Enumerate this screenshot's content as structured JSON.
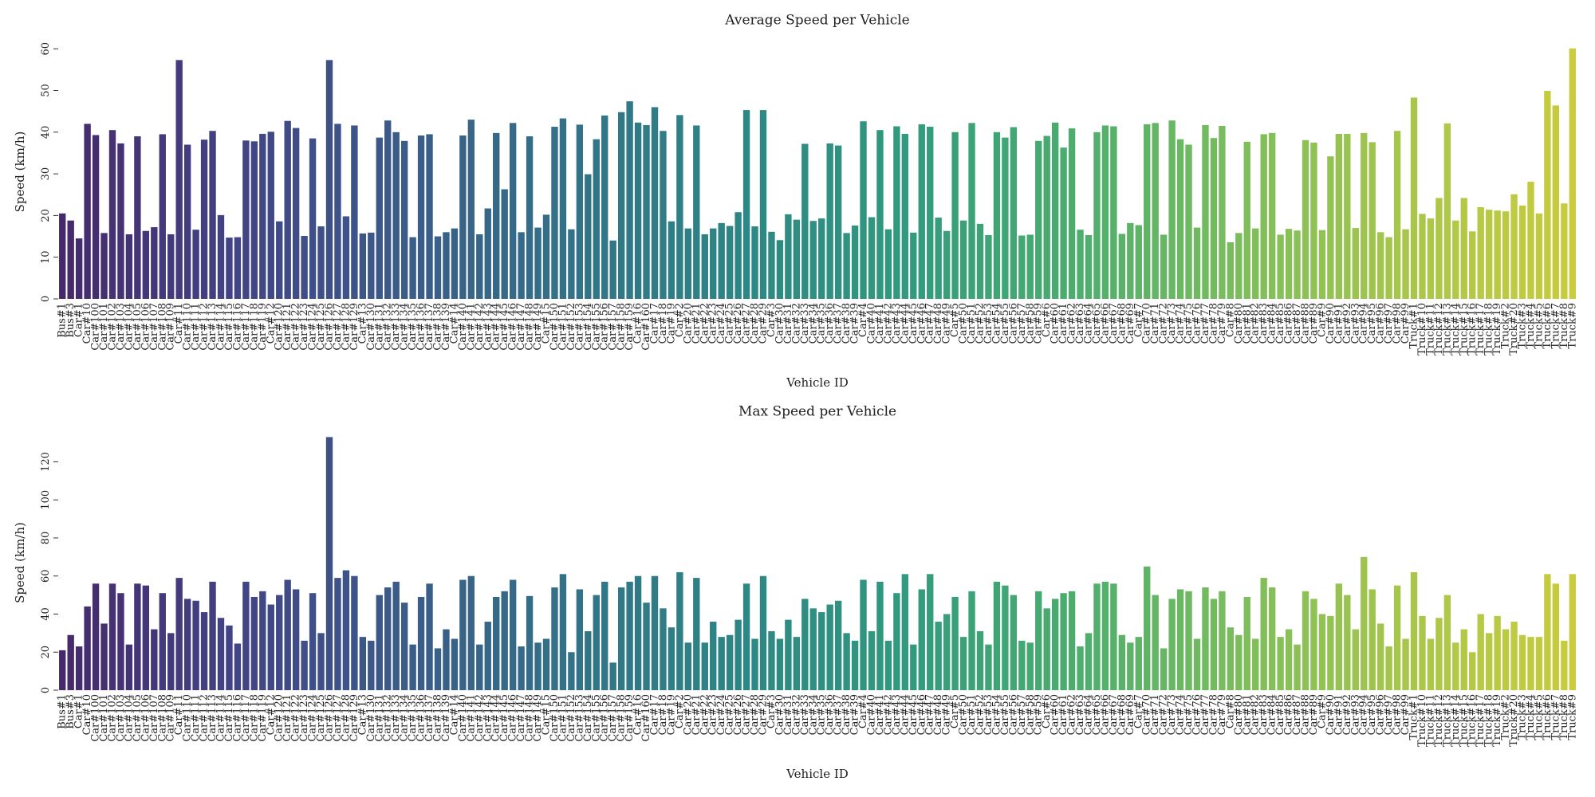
{
  "chart_data": [
    {
      "type": "bar",
      "title": "Average Speed per Vehicle",
      "xlabel": "Vehicle ID",
      "ylabel": "Speed (km/h)",
      "palette": [
        "#46296b",
        "#424385",
        "#3b5b89",
        "#337187",
        "#2d8585",
        "#319a7e",
        "#4bad6f",
        "#7bbd5c",
        "#a8c64b",
        "#c9cc3d"
      ],
      "ylim": [
        0,
        61
      ],
      "yticks": [
        0,
        10,
        20,
        30,
        40,
        50,
        60
      ],
      "categories": [
        "Bus#1",
        "Bus#3",
        "Car#1",
        "Car#10",
        "Car#100",
        "Car#101",
        "Car#102",
        "Car#103",
        "Car#104",
        "Car#105",
        "Car#106",
        "Car#107",
        "Car#108",
        "Car#109",
        "Car#11",
        "Car#110",
        "Car#111",
        "Car#112",
        "Car#113",
        "Car#114",
        "Car#115",
        "Car#116",
        "Car#117",
        "Car#118",
        "Car#119",
        "Car#12",
        "Car#120",
        "Car#121",
        "Car#122",
        "Car#123",
        "Car#124",
        "Car#125",
        "Car#126",
        "Car#127",
        "Car#128",
        "Car#129",
        "Car#13",
        "Car#130",
        "Car#131",
        "Car#132",
        "Car#133",
        "Car#134",
        "Car#135",
        "Car#136",
        "Car#137",
        "Car#138",
        "Car#139",
        "Car#14",
        "Car#140",
        "Car#141",
        "Car#142",
        "Car#143",
        "Car#144",
        "Car#145",
        "Car#146",
        "Car#147",
        "Car#148",
        "Car#149",
        "Car#15",
        "Car#150",
        "Car#151",
        "Car#152",
        "Car#153",
        "Car#154",
        "Car#155",
        "Car#156",
        "Car#157",
        "Car#158",
        "Car#159",
        "Car#16",
        "Car#160",
        "Car#17",
        "Car#18",
        "Car#19",
        "Car#2",
        "Car#20",
        "Car#21",
        "Car#22",
        "Car#23",
        "Car#24",
        "Car#25",
        "Car#26",
        "Car#27",
        "Car#28",
        "Car#29",
        "Car#3",
        "Car#30",
        "Car#31",
        "Car#32",
        "Car#33",
        "Car#34",
        "Car#35",
        "Car#36",
        "Car#37",
        "Car#38",
        "Car#39",
        "Car#4",
        "Car#40",
        "Car#41",
        "Car#42",
        "Car#43",
        "Car#44",
        "Car#45",
        "Car#46",
        "Car#47",
        "Car#48",
        "Car#49",
        "Car#5",
        "Car#50",
        "Car#51",
        "Car#52",
        "Car#53",
        "Car#54",
        "Car#55",
        "Car#56",
        "Car#57",
        "Car#58",
        "Car#59",
        "Car#6",
        "Car#60",
        "Car#61",
        "Car#62",
        "Car#63",
        "Car#64",
        "Car#65",
        "Car#66",
        "Car#67",
        "Car#68",
        "Car#69",
        "Car#7",
        "Car#70",
        "Car#71",
        "Car#72",
        "Car#73",
        "Car#74",
        "Car#75",
        "Car#76",
        "Car#77",
        "Car#78",
        "Car#79",
        "Car#8",
        "Car#80",
        "Car#81",
        "Car#82",
        "Car#83",
        "Car#84",
        "Car#85",
        "Car#86",
        "Car#87",
        "Car#88",
        "Car#89",
        "Car#9",
        "Car#90",
        "Car#91",
        "Car#92",
        "Car#93",
        "Car#94",
        "Car#95",
        "Car#96",
        "Car#97",
        "Car#98",
        "Car#99",
        "Truck#1",
        "Truck#10",
        "Truck#11",
        "Truck#12",
        "Truck#13",
        "Truck#14",
        "Truck#15",
        "Truck#16",
        "Truck#17",
        "Truck#18",
        "Truck#19",
        "Truck#2",
        "Truck#20",
        "Truck#3",
        "Truck#4",
        "Truck#5",
        "Truck#6",
        "Truck#7",
        "Truck#8",
        "Truck#9"
      ],
      "values": [
        20.5,
        18.8,
        14.5,
        42,
        39.3,
        15.8,
        40.5,
        37.3,
        15.5,
        39,
        16.3,
        17.2,
        39.5,
        15.5,
        57.3,
        37,
        16.6,
        38.2,
        40.3,
        20.1,
        14.7,
        14.8,
        38,
        37.8,
        39.6,
        40.1,
        18.6,
        42.7,
        41,
        15.1,
        38.5,
        17.4,
        57.3,
        42,
        19.8,
        41.6,
        15.7,
        15.9,
        38.7,
        42.8,
        40,
        37.9,
        14.8,
        39.2,
        39.5,
        15,
        16,
        16.9,
        39.2,
        43,
        15.5,
        21.7,
        39.8,
        26.3,
        42.2,
        16,
        39,
        17.1,
        20.2,
        41.3,
        43.3,
        16.7,
        41.8,
        29.9,
        38.3,
        44,
        14,
        44.8,
        47.4,
        42.3,
        41.7,
        46,
        40.3,
        18.6,
        44.1,
        16.9,
        41.6,
        15.5,
        16.9,
        18.2,
        17.5,
        20.8,
        45.3,
        17.4,
        45.3,
        16.1,
        14.1,
        20.3,
        19,
        37.2,
        18.7,
        19.3,
        37.3,
        36.8,
        15.8,
        17.6,
        42.6,
        19.6,
        40.5,
        16.7,
        41.4,
        39.6,
        15.9,
        41.9,
        41.3,
        19.5,
        16.3,
        40,
        18.8,
        42.2,
        18,
        15.3,
        40,
        38.7,
        41.2,
        15.2,
        15.4,
        37.9,
        39.1,
        42.3,
        36.3,
        40.9,
        16.6,
        15.3,
        40,
        41.6,
        41.4,
        15.6,
        18.2,
        17.7,
        41.9,
        42.2,
        15.4,
        42.8,
        38.3,
        37,
        17.1,
        41.7,
        38.6,
        41.5,
        13.6,
        15.8,
        37.7,
        16.9,
        39.5,
        39.8,
        15.4,
        16.8,
        16.4,
        38.1,
        37.5,
        16.5,
        34.2,
        39.6,
        39.6,
        17,
        39.8,
        37.6,
        16,
        14.8,
        40.3,
        16.7,
        48.3,
        20.4,
        19.3,
        24.2,
        42.1,
        18.8,
        24.2,
        16.2,
        22,
        21.4,
        21.2,
        21,
        25.1,
        22.4,
        28.1,
        20.5,
        49.9,
        46.4,
        22.9,
        60.1
      ]
    },
    {
      "type": "bar",
      "title": "Max Speed per Vehicle",
      "xlabel": "Vehicle ID",
      "ylabel": "Speed (km/h)",
      "palette": [
        "#46296b",
        "#424385",
        "#3b5b89",
        "#337187",
        "#2d8585",
        "#319a7e",
        "#4bad6f",
        "#7bbd5c",
        "#a8c64b",
        "#c9cc3d"
      ],
      "ylim": [
        0,
        134
      ],
      "yticks": [
        0,
        20,
        40,
        60,
        80,
        100,
        120
      ],
      "categories": [
        "Bus#1",
        "Bus#3",
        "Car#1",
        "Car#10",
        "Car#100",
        "Car#101",
        "Car#102",
        "Car#103",
        "Car#104",
        "Car#105",
        "Car#106",
        "Car#107",
        "Car#108",
        "Car#109",
        "Car#11",
        "Car#110",
        "Car#111",
        "Car#112",
        "Car#113",
        "Car#114",
        "Car#115",
        "Car#116",
        "Car#117",
        "Car#118",
        "Car#119",
        "Car#12",
        "Car#120",
        "Car#121",
        "Car#122",
        "Car#123",
        "Car#124",
        "Car#125",
        "Car#126",
        "Car#127",
        "Car#128",
        "Car#129",
        "Car#13",
        "Car#130",
        "Car#131",
        "Car#132",
        "Car#133",
        "Car#134",
        "Car#135",
        "Car#136",
        "Car#137",
        "Car#138",
        "Car#139",
        "Car#14",
        "Car#140",
        "Car#141",
        "Car#142",
        "Car#143",
        "Car#144",
        "Car#145",
        "Car#146",
        "Car#147",
        "Car#148",
        "Car#149",
        "Car#15",
        "Car#150",
        "Car#151",
        "Car#152",
        "Car#153",
        "Car#154",
        "Car#155",
        "Car#156",
        "Car#157",
        "Car#158",
        "Car#159",
        "Car#16",
        "Car#160",
        "Car#17",
        "Car#18",
        "Car#19",
        "Car#2",
        "Car#20",
        "Car#21",
        "Car#22",
        "Car#23",
        "Car#24",
        "Car#25",
        "Car#26",
        "Car#27",
        "Car#28",
        "Car#29",
        "Car#3",
        "Car#30",
        "Car#31",
        "Car#32",
        "Car#33",
        "Car#34",
        "Car#35",
        "Car#36",
        "Car#37",
        "Car#38",
        "Car#39",
        "Car#4",
        "Car#40",
        "Car#41",
        "Car#42",
        "Car#43",
        "Car#44",
        "Car#45",
        "Car#46",
        "Car#47",
        "Car#48",
        "Car#49",
        "Car#5",
        "Car#50",
        "Car#51",
        "Car#52",
        "Car#53",
        "Car#54",
        "Car#55",
        "Car#56",
        "Car#57",
        "Car#58",
        "Car#59",
        "Car#6",
        "Car#60",
        "Car#61",
        "Car#62",
        "Car#63",
        "Car#64",
        "Car#65",
        "Car#66",
        "Car#67",
        "Car#68",
        "Car#69",
        "Car#7",
        "Car#70",
        "Car#71",
        "Car#72",
        "Car#73",
        "Car#74",
        "Car#75",
        "Car#76",
        "Car#77",
        "Car#78",
        "Car#79",
        "Car#8",
        "Car#80",
        "Car#81",
        "Car#82",
        "Car#83",
        "Car#84",
        "Car#85",
        "Car#86",
        "Car#87",
        "Car#88",
        "Car#89",
        "Car#9",
        "Car#90",
        "Car#91",
        "Car#92",
        "Car#93",
        "Car#94",
        "Car#95",
        "Car#96",
        "Car#97",
        "Car#98",
        "Car#99",
        "Truck#1",
        "Truck#10",
        "Truck#11",
        "Truck#12",
        "Truck#13",
        "Truck#14",
        "Truck#15",
        "Truck#16",
        "Truck#17",
        "Truck#18",
        "Truck#19",
        "Truck#2",
        "Truck#20",
        "Truck#3",
        "Truck#4",
        "Truck#5",
        "Truck#6",
        "Truck#7",
        "Truck#8",
        "Truck#9"
      ],
      "values": [
        21,
        29,
        23,
        44,
        56,
        35,
        56,
        51,
        24,
        56,
        55,
        32,
        51,
        30,
        59,
        48,
        47,
        41,
        57,
        38,
        34,
        24.5,
        57,
        49,
        52,
        45,
        50,
        58,
        53,
        26,
        51,
        30,
        133,
        59,
        63,
        60,
        28,
        26,
        50,
        54,
        57,
        46,
        24,
        49,
        56,
        22,
        32,
        27,
        58,
        60,
        24,
        36,
        49,
        52,
        58,
        23,
        49.5,
        25,
        27,
        54,
        61,
        20,
        53,
        31,
        50,
        57,
        14.5,
        54,
        57,
        60,
        46,
        60,
        43,
        33,
        62,
        25,
        59,
        25,
        36,
        28,
        29,
        37,
        56,
        27,
        60,
        31,
        27,
        37,
        28,
        48,
        43,
        41,
        45,
        47,
        30,
        26,
        58,
        31,
        57,
        26,
        51,
        61,
        24,
        53,
        61,
        36,
        40,
        49,
        28,
        52,
        31,
        24,
        57,
        55,
        50,
        26,
        25,
        52,
        43,
        48,
        51,
        52,
        23,
        30,
        56,
        57,
        56,
        29,
        25,
        28,
        65,
        50,
        22,
        48,
        53,
        52,
        27,
        54,
        48,
        52,
        33,
        29,
        49,
        27,
        59,
        54,
        28,
        32,
        24,
        52,
        48,
        40,
        39,
        56,
        50,
        32,
        70,
        53,
        35,
        23,
        55,
        27,
        62,
        39,
        27,
        38,
        50,
        25,
        32,
        20,
        40,
        30,
        39,
        32,
        36,
        29,
        28,
        28,
        61,
        56,
        26,
        61
      ]
    }
  ]
}
